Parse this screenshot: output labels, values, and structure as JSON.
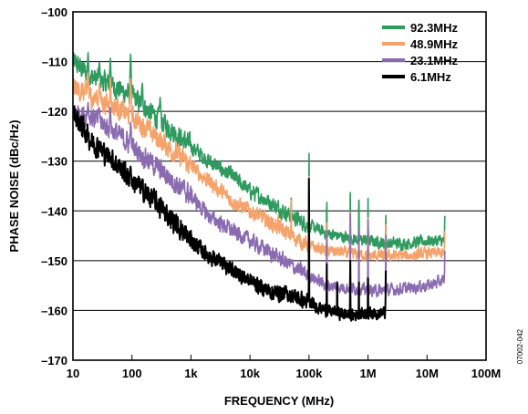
{
  "chart_data": {
    "type": "line",
    "xlabel": "FREQUENCY (MHz)",
    "ylabel": "PHASE NOISE (dBc/Hz)",
    "xscale": "log",
    "xlim": [
      10,
      100000000
    ],
    "ylim": [
      -170,
      -100
    ],
    "xticks": [
      10,
      100,
      1000,
      10000,
      100000,
      1000000,
      10000000,
      100000000
    ],
    "xtick_labels": [
      "10",
      "100",
      "1k",
      "10k",
      "100k",
      "1M",
      "10M",
      "100M"
    ],
    "yticks": [
      -100,
      -110,
      -120,
      -130,
      -140,
      -150,
      -160,
      -170
    ],
    "ytick_labels": [
      "–100",
      "–110",
      "–120",
      "–130",
      "–140",
      "–150",
      "–160",
      "–170"
    ],
    "grid": "horizontal",
    "legend_position": "top-right",
    "figure_id": "07002-042",
    "series": [
      {
        "name": "92.3MHz",
        "color": "#2e9a5e",
        "x": [
          10,
          20,
          50,
          100,
          200,
          500,
          1000,
          2000,
          5000,
          10000,
          20000,
          50000,
          100000,
          200000,
          500000,
          1000000,
          2000000,
          5000000,
          10000000,
          20000000
        ],
        "y": [
          -110,
          -113,
          -115,
          -117,
          -120,
          -124,
          -127,
          -130,
          -133,
          -136,
          -138,
          -141,
          -143,
          -144.5,
          -145.5,
          -146,
          -146.5,
          -146.5,
          -146,
          -146
        ],
        "spurs": [
          [
            18,
            -108
          ],
          [
            28,
            -110
          ],
          [
            43,
            -109
          ],
          [
            95,
            -108
          ],
          [
            150,
            -114
          ],
          [
            300,
            -117
          ],
          [
            50000,
            -137
          ],
          [
            100000,
            -125
          ],
          [
            200000,
            -136
          ],
          [
            500000,
            -136
          ],
          [
            700000,
            -134
          ],
          [
            1000000,
            -137
          ],
          [
            2000000,
            -140
          ],
          [
            20000000,
            -141
          ]
        ]
      },
      {
        "name": "48.9MHz",
        "color": "#f5a36b",
        "x": [
          10,
          20,
          50,
          100,
          200,
          500,
          1000,
          2000,
          5000,
          10000,
          20000,
          50000,
          100000,
          200000,
          500000,
          1000000,
          2000000,
          5000000,
          10000000,
          20000000
        ],
        "y": [
          -115,
          -117,
          -119,
          -121,
          -124,
          -128,
          -131,
          -134,
          -138,
          -140,
          -142,
          -145,
          -147,
          -148,
          -148.5,
          -149,
          -149,
          -149,
          -148.5,
          -148.5
        ],
        "spurs": [
          [
            18,
            -112
          ],
          [
            28,
            -114
          ],
          [
            43,
            -113
          ],
          [
            95,
            -113
          ],
          [
            30000,
            -140
          ],
          [
            50000,
            -137
          ],
          [
            100000,
            -130
          ],
          [
            200000,
            -140
          ],
          [
            500000,
            -140
          ],
          [
            1000000,
            -141
          ],
          [
            2000000,
            -142
          ],
          [
            20000000,
            -144
          ]
        ]
      },
      {
        "name": "23.1MHz",
        "color": "#8a6bb0",
        "x": [
          10,
          20,
          50,
          100,
          200,
          500,
          1000,
          2000,
          5000,
          10000,
          20000,
          50000,
          100000,
          200000,
          500000,
          1000000,
          2000000,
          5000000,
          10000000,
          20000000
        ],
        "y": [
          -120,
          -121,
          -124,
          -127,
          -130,
          -134,
          -137,
          -141,
          -144,
          -146,
          -148,
          -151,
          -153,
          -155,
          -155.5,
          -156,
          -156,
          -155.5,
          -155,
          -154
        ],
        "spurs": [
          [
            18,
            -118
          ],
          [
            28,
            -119
          ],
          [
            43,
            -119
          ],
          [
            95,
            -122
          ],
          [
            5000,
            -145
          ],
          [
            100000,
            -135
          ],
          [
            200000,
            -140
          ],
          [
            500000,
            -140
          ],
          [
            700000,
            -137
          ],
          [
            1000000,
            -141
          ],
          [
            2000000,
            -143
          ],
          [
            20000000,
            -148
          ]
        ]
      },
      {
        "name": "6.1MHz",
        "color": "#000000",
        "x": [
          10,
          20,
          50,
          100,
          200,
          500,
          1000,
          2000,
          5000,
          10000,
          20000,
          50000,
          100000,
          200000,
          500000,
          1000000,
          2000000
        ],
        "y": [
          -120,
          -126,
          -130,
          -134,
          -137,
          -142,
          -146,
          -149,
          -152,
          -154,
          -156,
          -157,
          -158.5,
          -160,
          -161,
          -160.5,
          -160.5
        ],
        "spurs": [
          [
            18,
            -124
          ],
          [
            28,
            -126
          ],
          [
            43,
            -129
          ],
          [
            95,
            -131
          ],
          [
            5000,
            -150
          ],
          [
            100000,
            -125
          ],
          [
            200000,
            -150
          ],
          [
            300000,
            -152
          ],
          [
            500000,
            -150
          ],
          [
            700000,
            -152
          ],
          [
            1000000,
            -150
          ],
          [
            2000000,
            -152
          ]
        ]
      }
    ]
  }
}
